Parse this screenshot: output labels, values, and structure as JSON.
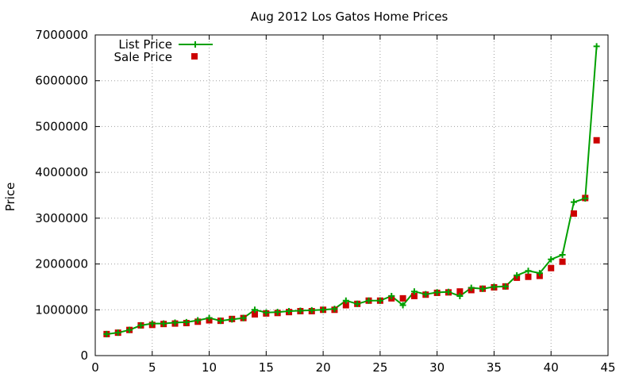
{
  "chart_data": {
    "type": "line",
    "title": "Aug 2012 Los Gatos Home Prices",
    "xlabel": "",
    "ylabel": "Price",
    "xlim": [
      0,
      45
    ],
    "ylim": [
      0,
      7000000
    ],
    "xticks": [
      0,
      5,
      10,
      15,
      20,
      25,
      30,
      35,
      40,
      45
    ],
    "yticks": [
      0,
      1000000,
      2000000,
      3000000,
      4000000,
      5000000,
      6000000,
      7000000
    ],
    "grid": true,
    "legend_position": "top-left",
    "colors": {
      "list": "#00a000",
      "sale": "#cc0000"
    },
    "x": [
      1,
      2,
      3,
      4,
      5,
      6,
      7,
      8,
      9,
      10,
      11,
      12,
      13,
      14,
      15,
      16,
      17,
      18,
      19,
      20,
      21,
      22,
      23,
      24,
      25,
      26,
      27,
      28,
      29,
      30,
      31,
      32,
      33,
      34,
      35,
      36,
      37,
      38,
      39,
      40,
      41,
      42,
      43,
      44
    ],
    "series": [
      {
        "name": "List Price",
        "style": "line-plus",
        "values": [
          470000,
          500000,
          560000,
          660000,
          700000,
          700000,
          720000,
          730000,
          770000,
          820000,
          760000,
          790000,
          820000,
          1000000,
          940000,
          950000,
          970000,
          980000,
          990000,
          1000000,
          1020000,
          1200000,
          1130000,
          1200000,
          1200000,
          1300000,
          1100000,
          1400000,
          1340000,
          1380000,
          1390000,
          1300000,
          1480000,
          1460000,
          1500000,
          1510000,
          1750000,
          1850000,
          1800000,
          2100000,
          2200000,
          3350000,
          3430000,
          6750000
        ]
      },
      {
        "name": "Sale Price",
        "style": "square-points",
        "values": [
          470000,
          500000,
          560000,
          660000,
          670000,
          690000,
          700000,
          710000,
          740000,
          770000,
          760000,
          800000,
          820000,
          900000,
          920000,
          930000,
          950000,
          970000,
          970000,
          1000000,
          1000000,
          1100000,
          1130000,
          1200000,
          1200000,
          1250000,
          1250000,
          1300000,
          1330000,
          1370000,
          1380000,
          1400000,
          1430000,
          1460000,
          1490000,
          1510000,
          1700000,
          1720000,
          1740000,
          1910000,
          2050000,
          3100000,
          3440000,
          4700000
        ]
      }
    ]
  }
}
